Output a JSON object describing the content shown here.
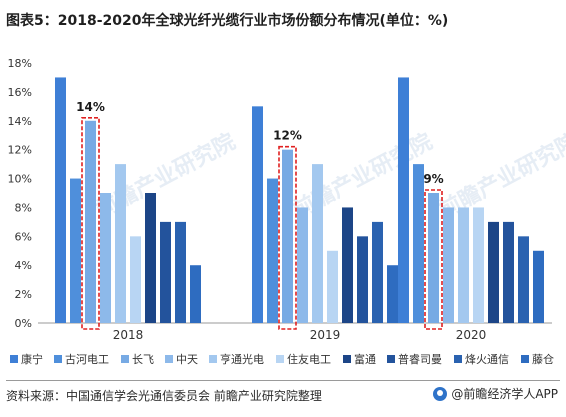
{
  "title": "图表5：2018-2020年全球光纤光缆行业市场份额分布情况(单位：%)",
  "watermark": "前瞻产业研究院",
  "source": "资料来源：中国通信学会光通信委员会 前瞻产业研究院整理",
  "brand": "@前瞻经济学人APP",
  "chart_data": {
    "type": "bar",
    "categories": [
      "2018",
      "2019",
      "2020"
    ],
    "ylim": [
      0,
      18
    ],
    "yticks": [
      "0%",
      "2%",
      "4%",
      "6%",
      "8%",
      "10%",
      "12%",
      "14%",
      "16%",
      "18%"
    ],
    "grid": false,
    "legend_position": "bottom",
    "series": [
      {
        "name": "康宁",
        "color": "#3e7fd6",
        "values": [
          17,
          15,
          17
        ]
      },
      {
        "name": "古河电工",
        "color": "#4f8fdb",
        "values": [
          10,
          10,
          11
        ]
      },
      {
        "name": "长飞",
        "color": "#77aae4",
        "values": [
          14,
          12,
          9
        ]
      },
      {
        "name": "中天",
        "color": "#8db9ea",
        "values": [
          9,
          8,
          8
        ]
      },
      {
        "name": "亨通光电",
        "color": "#a3c8ef",
        "values": [
          11,
          11,
          8
        ]
      },
      {
        "name": "住友电工",
        "color": "#b8d5f3",
        "values": [
          6,
          5,
          8
        ]
      },
      {
        "name": "富通",
        "color": "#1c4587",
        "values": [
          9,
          8,
          7
        ]
      },
      {
        "name": "普睿司曼",
        "color": "#23539c",
        "values": [
          7,
          6,
          7
        ]
      },
      {
        "name": "烽火通信",
        "color": "#2a62b0",
        "values": [
          7,
          7,
          6
        ]
      },
      {
        "name": "藤仓",
        "color": "#2e6cc0",
        "values": [
          4,
          4,
          5
        ]
      }
    ],
    "annotations": [
      {
        "category": "2018",
        "series": "长飞",
        "label": "14%"
      },
      {
        "category": "2019",
        "series": "长飞",
        "label": "12%"
      },
      {
        "category": "2020",
        "series": "长飞",
        "label": "9%"
      }
    ]
  }
}
